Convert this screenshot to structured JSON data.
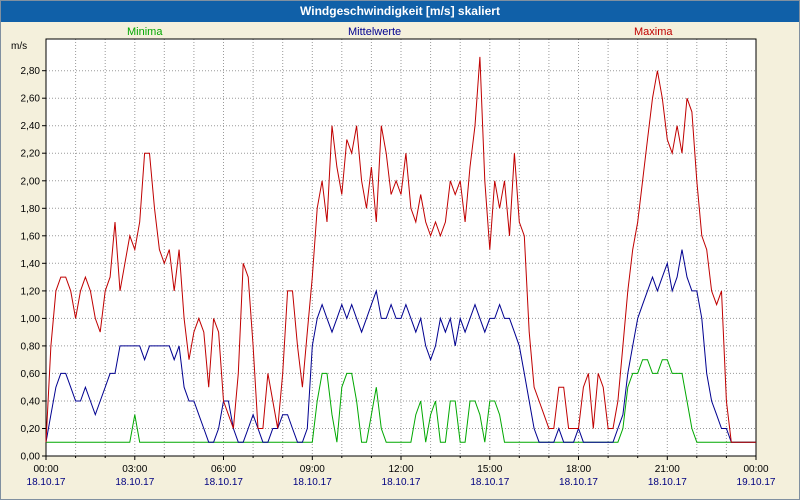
{
  "header": {
    "title": "Windgeschwindigkeit [m/s] skaliert"
  },
  "colors": {
    "background": "#F4F0DC",
    "titlebar": "#1060A8",
    "titlebar_text": "#FFFFFF",
    "plot_background": "#FFFFFF",
    "grid": "#9A9A9A",
    "axis": "#000000",
    "time_label": "#000000",
    "date_label": "#000080",
    "minima": "#00A800",
    "mittelwerte": "#000090",
    "maxima": "#C00000"
  },
  "chart_data": {
    "type": "line",
    "title": "Windgeschwindigkeit [m/s] skaliert",
    "y_unit_label": "m/s",
    "ylim": [
      0,
      3.03
    ],
    "grid": "dotted, horizontal every 0.20 m/s, vertical every hour",
    "legend_position": "top, Minima left / Mittelwerte center / Maxima right",
    "sample_interval_minutes": 10,
    "x_hours_total": 24,
    "y_ticks": [
      0.0,
      0.2,
      0.4,
      0.6,
      0.8,
      1.0,
      1.2,
      1.4,
      1.6,
      1.8,
      2.0,
      2.2,
      2.4,
      2.6,
      2.8
    ],
    "y_tick_labels": [
      "0,00",
      "0,20",
      "0,40",
      "0,60",
      "0,80",
      "1,00",
      "1,20",
      "1,40",
      "1,60",
      "1,80",
      "2,00",
      "2,20",
      "2,40",
      "2,60",
      "2,80"
    ],
    "x_ticks": [
      {
        "hour": 0,
        "time": "00:00",
        "date": "18.10.17"
      },
      {
        "hour": 3,
        "time": "03:00",
        "date": "18.10.17"
      },
      {
        "hour": 6,
        "time": "06:00",
        "date": "18.10.17"
      },
      {
        "hour": 9,
        "time": "09:00",
        "date": "18.10.17"
      },
      {
        "hour": 12,
        "time": "12:00",
        "date": "18.10.17"
      },
      {
        "hour": 15,
        "time": "15:00",
        "date": "18.10.17"
      },
      {
        "hour": 18,
        "time": "18:00",
        "date": "18.10.17"
      },
      {
        "hour": 21,
        "time": "21:00",
        "date": "18.10.17"
      },
      {
        "hour": 24,
        "time": "00:00",
        "date": "19.10.17"
      }
    ],
    "series": [
      {
        "name": "Minima",
        "color": "#00A800",
        "values": [
          0.1,
          0.1,
          0.1,
          0.1,
          0.1,
          0.1,
          0.1,
          0.1,
          0.1,
          0.1,
          0.1,
          0.1,
          0.1,
          0.1,
          0.1,
          0.1,
          0.1,
          0.1,
          0.3,
          0.1,
          0.1,
          0.1,
          0.1,
          0.1,
          0.1,
          0.1,
          0.1,
          0.1,
          0.1,
          0.1,
          0.1,
          0.1,
          0.1,
          0.1,
          0.1,
          0.1,
          0.1,
          0.1,
          0.1,
          0.1,
          0.1,
          0.1,
          0.1,
          0.1,
          0.1,
          0.1,
          0.1,
          0.1,
          0.1,
          0.1,
          0.1,
          0.1,
          0.1,
          0.1,
          0.1,
          0.4,
          0.6,
          0.6,
          0.3,
          0.1,
          0.5,
          0.6,
          0.6,
          0.4,
          0.1,
          0.1,
          0.3,
          0.5,
          0.2,
          0.1,
          0.1,
          0.1,
          0.1,
          0.1,
          0.1,
          0.3,
          0.4,
          0.1,
          0.3,
          0.4,
          0.1,
          0.1,
          0.4,
          0.4,
          0.1,
          0.1,
          0.4,
          0.4,
          0.3,
          0.1,
          0.4,
          0.4,
          0.3,
          0.1,
          0.1,
          0.1,
          0.1,
          0.1,
          0.1,
          0.1,
          0.1,
          0.1,
          0.1,
          0.1,
          0.1,
          0.1,
          0.1,
          0.1,
          0.1,
          0.1,
          0.1,
          0.1,
          0.1,
          0.1,
          0.1,
          0.1,
          0.1,
          0.2,
          0.5,
          0.6,
          0.6,
          0.7,
          0.7,
          0.6,
          0.6,
          0.7,
          0.7,
          0.6,
          0.6,
          0.6,
          0.4,
          0.2,
          0.1,
          0.1,
          0.1,
          0.1,
          0.1,
          0.1,
          0.1,
          0.1,
          0.1,
          0.1,
          0.1,
          0.1,
          0.1
        ]
      },
      {
        "name": "Mittelwerte",
        "color": "#000090",
        "values": [
          0.1,
          0.3,
          0.5,
          0.6,
          0.6,
          0.5,
          0.4,
          0.4,
          0.5,
          0.4,
          0.3,
          0.4,
          0.5,
          0.6,
          0.6,
          0.8,
          0.8,
          0.8,
          0.8,
          0.8,
          0.7,
          0.8,
          0.8,
          0.8,
          0.8,
          0.8,
          0.7,
          0.8,
          0.5,
          0.4,
          0.4,
          0.3,
          0.2,
          0.1,
          0.1,
          0.2,
          0.4,
          0.4,
          0.2,
          0.1,
          0.1,
          0.2,
          0.3,
          0.2,
          0.1,
          0.1,
          0.2,
          0.2,
          0.3,
          0.3,
          0.2,
          0.1,
          0.1,
          0.2,
          0.8,
          1.0,
          1.1,
          1.0,
          0.9,
          1.0,
          1.1,
          1.0,
          1.1,
          1.0,
          0.9,
          1.0,
          1.1,
          1.2,
          1.0,
          1.0,
          1.1,
          1.0,
          1.0,
          1.1,
          1.0,
          0.9,
          1.0,
          0.8,
          0.7,
          0.8,
          1.0,
          0.9,
          1.0,
          0.8,
          1.0,
          0.9,
          1.0,
          1.1,
          1.0,
          0.9,
          1.0,
          1.0,
          1.1,
          1.0,
          1.0,
          0.9,
          0.8,
          0.6,
          0.4,
          0.2,
          0.1,
          0.1,
          0.1,
          0.1,
          0.2,
          0.1,
          0.1,
          0.1,
          0.2,
          0.1,
          0.1,
          0.1,
          0.1,
          0.1,
          0.1,
          0.1,
          0.2,
          0.3,
          0.6,
          0.8,
          1.0,
          1.1,
          1.2,
          1.3,
          1.2,
          1.3,
          1.4,
          1.2,
          1.3,
          1.5,
          1.3,
          1.2,
          1.2,
          1.0,
          0.6,
          0.4,
          0.3,
          0.2,
          0.2,
          0.1,
          0.1,
          0.1,
          0.1,
          0.1,
          0.1
        ]
      },
      {
        "name": "Maxima",
        "color": "#C00000",
        "values": [
          0.1,
          0.8,
          1.2,
          1.3,
          1.3,
          1.2,
          1.0,
          1.2,
          1.3,
          1.2,
          1.0,
          0.9,
          1.2,
          1.3,
          1.7,
          1.2,
          1.4,
          1.6,
          1.5,
          1.7,
          2.2,
          2.2,
          1.8,
          1.5,
          1.4,
          1.5,
          1.2,
          1.5,
          1.0,
          0.7,
          0.9,
          1.0,
          0.9,
          0.5,
          1.0,
          0.9,
          0.4,
          0.3,
          0.2,
          0.6,
          1.4,
          1.3,
          0.8,
          0.2,
          0.2,
          0.6,
          0.4,
          0.2,
          0.6,
          1.2,
          1.2,
          0.8,
          0.5,
          0.9,
          1.3,
          1.8,
          2.0,
          1.7,
          2.4,
          2.1,
          1.9,
          2.3,
          2.2,
          2.4,
          2.0,
          1.8,
          2.1,
          1.7,
          2.4,
          2.2,
          1.9,
          2.0,
          1.9,
          2.2,
          1.8,
          1.7,
          1.9,
          1.7,
          1.6,
          1.7,
          1.6,
          1.7,
          2.0,
          1.9,
          2.0,
          1.7,
          2.1,
          2.4,
          2.9,
          2.0,
          1.5,
          2.0,
          1.8,
          2.0,
          1.6,
          2.2,
          1.7,
          1.6,
          0.9,
          0.5,
          0.4,
          0.3,
          0.2,
          0.2,
          0.5,
          0.5,
          0.2,
          0.2,
          0.2,
          0.5,
          0.6,
          0.2,
          0.6,
          0.5,
          0.2,
          0.2,
          0.4,
          0.8,
          1.2,
          1.5,
          1.7,
          2.0,
          2.3,
          2.6,
          2.8,
          2.6,
          2.3,
          2.2,
          2.4,
          2.2,
          2.6,
          2.5,
          2.0,
          1.6,
          1.5,
          1.2,
          1.1,
          1.2,
          0.4,
          0.1,
          0.1,
          0.1,
          0.1,
          0.1,
          0.1
        ]
      }
    ]
  }
}
